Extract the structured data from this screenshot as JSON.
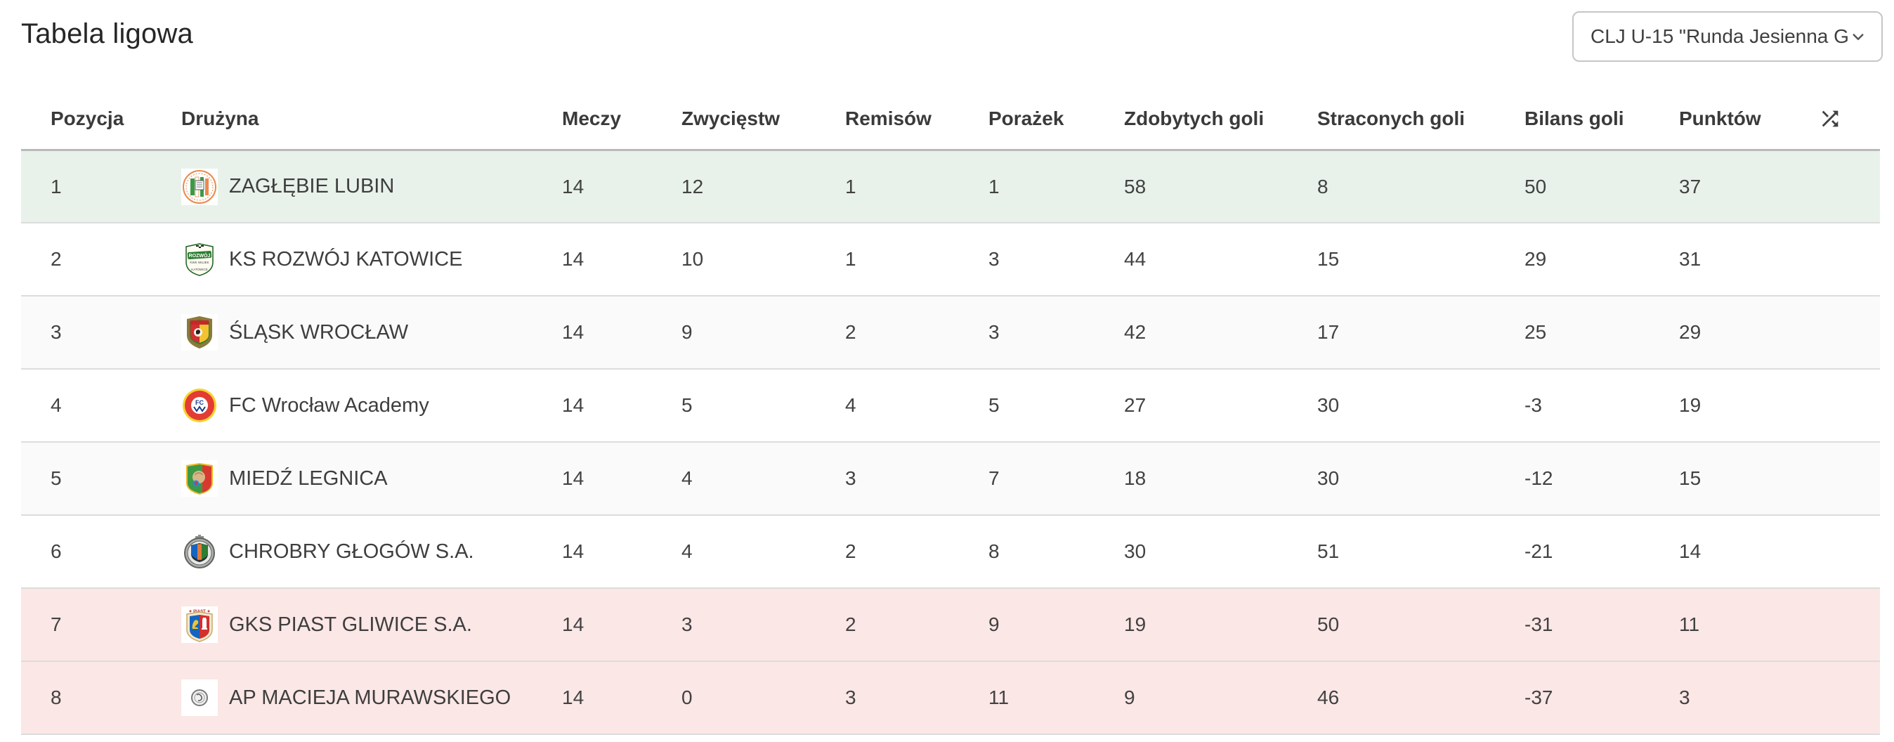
{
  "page": {
    "title": "Tabela ligowa"
  },
  "filter": {
    "value": "CLJ U-15 \"Runda Jesienna G…",
    "chevron_icon": "chevron-down-icon"
  },
  "colors": {
    "promotion_row_bg": "#e8f2ea",
    "relegation_row_bg": "#fbe7e5",
    "stripe_row_bg": "#fafafa",
    "header_text": "#3a3a3a",
    "cell_text": "#424242"
  },
  "table": {
    "columns": [
      {
        "id": "pozycja",
        "label": "Pozycja"
      },
      {
        "id": "druzyna",
        "label": "Drużyna"
      },
      {
        "id": "meczy",
        "label": "Meczy"
      },
      {
        "id": "zwyciestw",
        "label": "Zwycięstw"
      },
      {
        "id": "remisow",
        "label": "Remisów"
      },
      {
        "id": "porazek",
        "label": "Porażek"
      },
      {
        "id": "zdobytych-goli",
        "label": "Zdobytych goli"
      },
      {
        "id": "straconych-goli",
        "label": "Straconych goli"
      },
      {
        "id": "bilans-goli",
        "label": "Bilans goli"
      },
      {
        "id": "punktow",
        "label": "Punktów"
      }
    ],
    "shuffle_icon": "shuffle-icon",
    "rows": [
      {
        "position": "1",
        "team": "ZAGŁĘBIE LUBIN",
        "logo": "zaglebie-lubin-crest",
        "matches": "14",
        "wins": "12",
        "draws": "1",
        "losses": "1",
        "goals_for": "58",
        "goals_against": "8",
        "goal_diff": "50",
        "points": "37",
        "zone": "top"
      },
      {
        "position": "2",
        "team": "KS ROZWÓJ KATOWICE",
        "logo": "rozwoj-katowice-crest",
        "matches": "14",
        "wins": "10",
        "draws": "1",
        "losses": "3",
        "goals_for": "44",
        "goals_against": "15",
        "goal_diff": "29",
        "points": "31",
        "zone": ""
      },
      {
        "position": "3",
        "team": "ŚLĄSK WROCŁAW",
        "logo": "slask-wroclaw-crest",
        "matches": "14",
        "wins": "9",
        "draws": "2",
        "losses": "3",
        "goals_for": "42",
        "goals_against": "17",
        "goal_diff": "25",
        "points": "29",
        "zone": ""
      },
      {
        "position": "4",
        "team": "FC Wrocław Academy",
        "logo": "fc-wroclaw-academy-crest",
        "matches": "14",
        "wins": "5",
        "draws": "4",
        "losses": "5",
        "goals_for": "27",
        "goals_against": "30",
        "goal_diff": "-3",
        "points": "19",
        "zone": ""
      },
      {
        "position": "5",
        "team": "MIEDŹ LEGNICA",
        "logo": "miedz-legnica-crest",
        "matches": "14",
        "wins": "4",
        "draws": "3",
        "losses": "7",
        "goals_for": "18",
        "goals_against": "30",
        "goal_diff": "-12",
        "points": "15",
        "zone": ""
      },
      {
        "position": "6",
        "team": "CHROBRY GŁOGÓW S.A.",
        "logo": "chrobry-glogow-crest",
        "matches": "14",
        "wins": "4",
        "draws": "2",
        "losses": "8",
        "goals_for": "30",
        "goals_against": "51",
        "goal_diff": "-21",
        "points": "14",
        "zone": ""
      },
      {
        "position": "7",
        "team": "GKS PIAST GLIWICE S.A.",
        "logo": "piast-gliwice-crest",
        "matches": "14",
        "wins": "3",
        "draws": "2",
        "losses": "9",
        "goals_for": "19",
        "goals_against": "50",
        "goal_diff": "-31",
        "points": "11",
        "zone": "bottom"
      },
      {
        "position": "8",
        "team": "AP MACIEJA MURAWSKIEGO",
        "logo": "ap-murawskiego-crest",
        "matches": "14",
        "wins": "0",
        "draws": "3",
        "losses": "11",
        "goals_for": "9",
        "goals_against": "46",
        "goal_diff": "-37",
        "points": "3",
        "zone": "bottom"
      }
    ]
  }
}
